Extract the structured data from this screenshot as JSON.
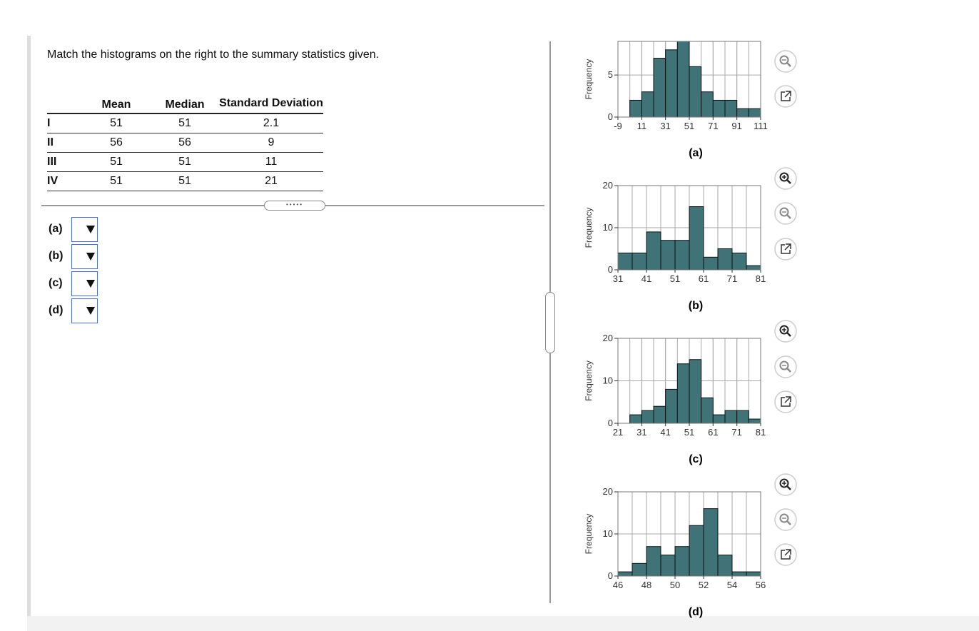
{
  "instruction": "Match the histograms on the right to the summary statistics given.",
  "table": {
    "columns": [
      "Mean",
      "Median",
      "Standard Deviation"
    ],
    "rows": [
      [
        "I",
        51,
        51,
        2.1
      ],
      [
        "II",
        56,
        56,
        9
      ],
      [
        "III",
        51,
        51,
        11
      ],
      [
        "IV",
        51,
        51,
        21
      ]
    ]
  },
  "answers": [
    "(a)",
    "(b)",
    "(c)",
    "(d)"
  ],
  "chart_data": [
    {
      "type": "histogram",
      "caption": "(a)",
      "ylabel": "Frequency",
      "color": "#3f7377",
      "grid": true,
      "bins": [
        1,
        11,
        21,
        31,
        41,
        51,
        61,
        71,
        81,
        91,
        101,
        111
      ],
      "counts": [
        2,
        3,
        7,
        8,
        9,
        6,
        3,
        2,
        2,
        1,
        1
      ],
      "xlim": [
        -9,
        111
      ],
      "xticks": [
        -9,
        11,
        31,
        51,
        71,
        91,
        111
      ],
      "ylim": [
        0,
        9
      ],
      "yticks": [
        0,
        5
      ]
    },
    {
      "type": "histogram",
      "caption": "(b)",
      "ylabel": "Frequency",
      "color": "#3f7377",
      "grid": true,
      "bins": [
        31,
        36,
        41,
        46,
        51,
        56,
        61,
        66,
        71,
        76,
        81
      ],
      "counts": [
        4,
        4,
        9,
        7,
        7,
        15,
        3,
        5,
        4,
        1
      ],
      "xlim": [
        31,
        81
      ],
      "xticks": [
        31,
        41,
        51,
        61,
        71,
        81
      ],
      "ylim": [
        0,
        20
      ],
      "yticks": [
        0,
        10,
        20
      ]
    },
    {
      "type": "histogram",
      "caption": "(c)",
      "ylabel": "Frequency",
      "color": "#3f7377",
      "grid": true,
      "bins": [
        26,
        31,
        36,
        41,
        46,
        51,
        56,
        61,
        66,
        71,
        76,
        81
      ],
      "counts": [
        2,
        3,
        4,
        8,
        14,
        15,
        6,
        2,
        3,
        3,
        1
      ],
      "xlim": [
        21,
        81
      ],
      "xticks": [
        21,
        31,
        41,
        51,
        61,
        71,
        81
      ],
      "ylim": [
        0,
        20
      ],
      "yticks": [
        0,
        10,
        20
      ]
    },
    {
      "type": "histogram",
      "caption": "(d)",
      "ylabel": "Frequency",
      "color": "#3f7377",
      "grid": true,
      "bins": [
        46,
        47,
        48,
        49,
        50,
        51,
        52,
        53,
        54,
        55,
        56
      ],
      "counts": [
        1,
        3,
        7,
        5,
        7,
        12,
        16,
        5,
        1,
        1
      ],
      "xlim": [
        46,
        56
      ],
      "xticks": [
        46,
        48,
        50,
        52,
        54,
        56
      ],
      "ylim": [
        0,
        20
      ],
      "yticks": [
        0,
        10,
        20
      ]
    }
  ]
}
